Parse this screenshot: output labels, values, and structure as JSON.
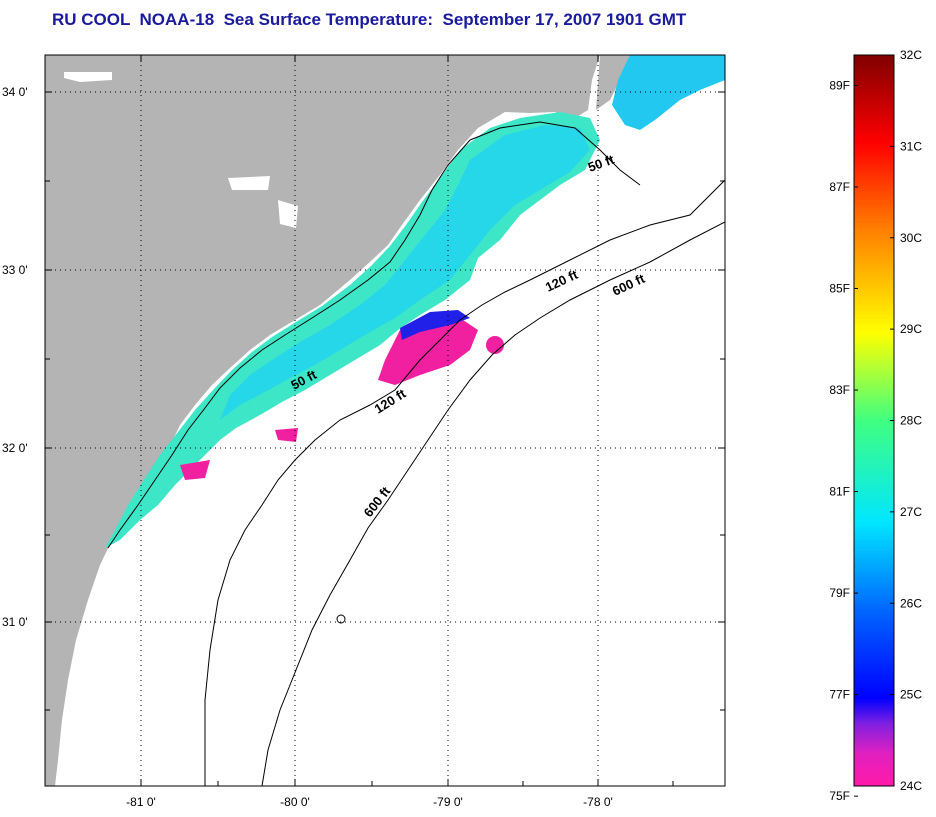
{
  "title": "RU COOL  NOAA-18  Sea Surface Temperature:  September 17, 2007 1901 GMT",
  "map": {
    "lat_ticks": [
      {
        "value": 34,
        "label": "34 0'"
      },
      {
        "value": 33,
        "label": "33 0'"
      },
      {
        "value": 32,
        "label": "32 0'"
      },
      {
        "value": 31,
        "label": "31 0'"
      }
    ],
    "lon_ticks": [
      {
        "value": -81,
        "label": "-81 0'"
      },
      {
        "value": -80,
        "label": "-80 0'"
      },
      {
        "value": -79,
        "label": "-79 0'"
      },
      {
        "value": -78,
        "label": "-78 0'"
      }
    ],
    "contour_labels": [
      {
        "text": "50 ft"
      },
      {
        "text": "120 ft"
      },
      {
        "text": "600 ft"
      },
      {
        "text": "50 ft"
      },
      {
        "text": "120 ft"
      },
      {
        "text": "600 ft"
      }
    ],
    "colors": {
      "land": "#b4b4b4",
      "ocean_no_data": "#ffffff",
      "grid": "#000000"
    }
  },
  "colorbar": {
    "min_c": 24,
    "max_c": 32,
    "celsius_labels": [
      "32C",
      "31C",
      "30C",
      "29C",
      "28C",
      "27C",
      "26C",
      "25C",
      "24C"
    ],
    "fahrenheit_labels": [
      "89F",
      "87F",
      "85F",
      "83F",
      "81F",
      "79F",
      "77F",
      "75F"
    ],
    "stops": [
      "#ff1aa8",
      "#c020d0",
      "#0000ff",
      "#0066ff",
      "#00e6ff",
      "#40ff80",
      "#ffff00",
      "#ff8000",
      "#ff0000",
      "#800000"
    ]
  }
}
